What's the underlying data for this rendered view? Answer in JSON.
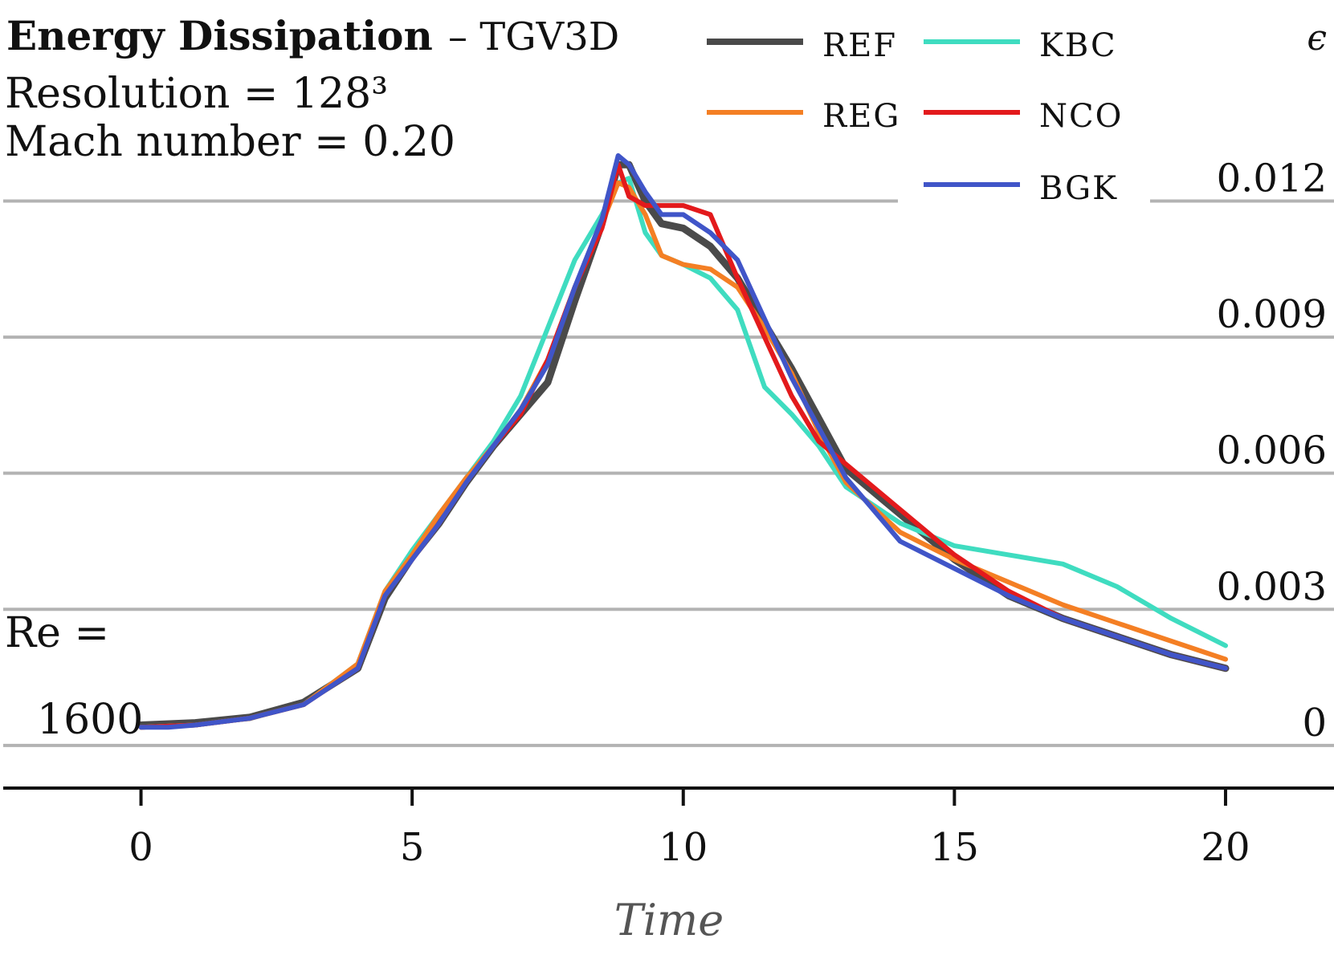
{
  "title": {
    "bold": "Energy Dissipation",
    "rest": "– TGV3D"
  },
  "info": {
    "resolution": "Resolution = 128³",
    "mach": "Mach number = 0.20",
    "re_label": "Re =",
    "re_value": "1600"
  },
  "chart_data": {
    "type": "line",
    "xlabel": "Time",
    "ylabel": "ϵ",
    "xlim": [
      -2.6,
      22.0
    ],
    "ylim": [
      -0.00055,
      0.0136
    ],
    "x_ticks": [
      0,
      5,
      10,
      15,
      20
    ],
    "x_tick_labels": [
      "0",
      "5",
      "10",
      "15",
      "20"
    ],
    "y_ticks": [
      0,
      0.003,
      0.006,
      0.009,
      0.012
    ],
    "y_tick_labels": [
      "0",
      "0.003",
      "0.006",
      "0.009",
      "0.012"
    ],
    "grid": "horizontal",
    "legend_position": "top-right",
    "series": [
      {
        "name": "REF",
        "color": "#4a4a4a",
        "x": [
          0,
          1,
          2,
          3,
          4,
          4.5,
          5,
          5.5,
          6,
          6.5,
          7,
          7.5,
          8,
          8.5,
          8.8,
          9.0,
          9.3,
          9.6,
          10,
          10.5,
          11,
          11.5,
          12,
          12.5,
          13,
          14,
          15,
          16,
          17,
          18,
          19,
          20
        ],
        "values": [
          0.00045,
          0.0005,
          0.00062,
          0.00095,
          0.0017,
          0.00325,
          0.00415,
          0.0049,
          0.0058,
          0.0066,
          0.0073,
          0.008,
          0.0098,
          0.0115,
          0.0128,
          0.0128,
          0.012,
          0.0115,
          0.0114,
          0.011,
          0.0103,
          0.0093,
          0.0083,
          0.0072,
          0.0061,
          0.0051,
          0.0041,
          0.0033,
          0.0028,
          0.0024,
          0.002,
          0.0017
        ]
      },
      {
        "name": "REG",
        "color": "#f47f24",
        "x": [
          0,
          1,
          2,
          3,
          4,
          4.5,
          5,
          5.5,
          6,
          6.5,
          7,
          7.5,
          8,
          8.5,
          8.8,
          9.0,
          9.3,
          9.6,
          10,
          10.5,
          11,
          11.5,
          12,
          12.5,
          13,
          14,
          15,
          16,
          17,
          18,
          19,
          20
        ],
        "values": [
          0.0004,
          0.00045,
          0.0006,
          0.0009,
          0.0018,
          0.0034,
          0.0042,
          0.0051,
          0.0059,
          0.0066,
          0.0074,
          0.0085,
          0.0101,
          0.0115,
          0.0124,
          0.0123,
          0.0117,
          0.0108,
          0.0106,
          0.0105,
          0.0101,
          0.0092,
          0.0082,
          0.0069,
          0.0058,
          0.0047,
          0.0041,
          0.0036,
          0.0031,
          0.0027,
          0.0023,
          0.0019
        ]
      },
      {
        "name": "KBC",
        "color": "#3fdcc0",
        "x": [
          0,
          1,
          2,
          3,
          4,
          4.5,
          5,
          5.5,
          6,
          6.5,
          7,
          7.5,
          8,
          8.5,
          8.8,
          9.0,
          9.3,
          9.6,
          10,
          10.5,
          11,
          11.5,
          12,
          12.5,
          13,
          14,
          15,
          16,
          17,
          18,
          19,
          20
        ],
        "values": [
          0.0004,
          0.00045,
          0.0006,
          0.0009,
          0.0018,
          0.0034,
          0.0043,
          0.0051,
          0.0059,
          0.0067,
          0.0077,
          0.0092,
          0.0107,
          0.0117,
          0.0124,
          0.0125,
          0.0113,
          0.0108,
          0.0106,
          0.0103,
          0.0096,
          0.0079,
          0.0073,
          0.0066,
          0.0057,
          0.0049,
          0.0044,
          0.0042,
          0.004,
          0.0035,
          0.0028,
          0.0022
        ]
      },
      {
        "name": "NCO",
        "color": "#e31a1c",
        "x": [
          0,
          1,
          2,
          3,
          4,
          4.5,
          5,
          5.5,
          6,
          6.5,
          7,
          7.5,
          8,
          8.5,
          8.8,
          9.0,
          9.3,
          9.6,
          10,
          10.5,
          11,
          11.5,
          12,
          12.5,
          13,
          14,
          15,
          16,
          17,
          18,
          19,
          20
        ],
        "values": [
          0.0004,
          0.00045,
          0.0006,
          0.0009,
          0.0017,
          0.0033,
          0.0041,
          0.0049,
          0.0058,
          0.0066,
          0.0073,
          0.0085,
          0.0101,
          0.0114,
          0.0128,
          0.0121,
          0.0119,
          0.0119,
          0.0119,
          0.0117,
          0.0103,
          0.009,
          0.0077,
          0.0067,
          0.0062,
          0.0052,
          0.0042,
          0.0034,
          0.0028,
          0.0024,
          0.002,
          0.0017
        ]
      },
      {
        "name": "BGK",
        "color": "#4055c8",
        "x": [
          0,
          0.5,
          1,
          2,
          3,
          4,
          4.5,
          5,
          5.5,
          6,
          6.5,
          7,
          7.5,
          8,
          8.5,
          8.8,
          9.0,
          9.3,
          9.6,
          10,
          10.5,
          11,
          11.5,
          12,
          12.5,
          13,
          13.5,
          14,
          15,
          16,
          17,
          18,
          19,
          20
        ],
        "values": [
          0.0004,
          0.0004,
          0.00045,
          0.0006,
          0.0009,
          0.0017,
          0.0033,
          0.0041,
          0.0049,
          0.0058,
          0.0066,
          0.0074,
          0.0084,
          0.0101,
          0.0116,
          0.013,
          0.0128,
          0.0122,
          0.0117,
          0.0117,
          0.0113,
          0.0107,
          0.0094,
          0.0081,
          0.007,
          0.0059,
          0.0052,
          0.0045,
          0.0039,
          0.0033,
          0.0028,
          0.0024,
          0.002,
          0.0017
        ]
      }
    ]
  }
}
